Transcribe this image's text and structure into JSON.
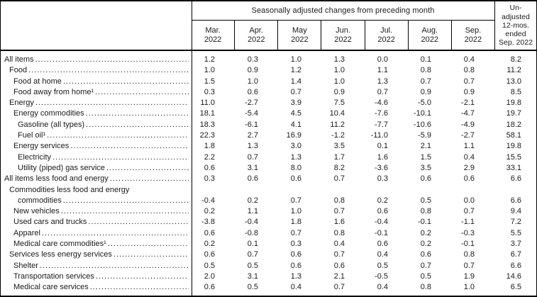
{
  "table": {
    "group_header": "Seasonally adjusted changes from preceding month",
    "months": [
      {
        "abbr": "Mar.",
        "year": "2022"
      },
      {
        "abbr": "Apr.",
        "year": "2022"
      },
      {
        "abbr": "May",
        "year": "2022"
      },
      {
        "abbr": "Jun.",
        "year": "2022"
      },
      {
        "abbr": "Jul.",
        "year": "2022"
      },
      {
        "abbr": "Aug.",
        "year": "2022"
      },
      {
        "abbr": "Sep.",
        "year": "2022"
      }
    ],
    "unadjusted_header_lines": [
      "Un-",
      "adjusted",
      "12-mos.",
      "ended",
      "Sep. 2022"
    ],
    "column_labels": [
      "Mar. 2022",
      "Apr. 2022",
      "May 2022",
      "Jun. 2022",
      "Jul. 2022",
      "Aug. 2022",
      "Sep. 2022",
      "Un-adjusted 12-mos. ended Sep. 2022"
    ],
    "rows": [
      {
        "label": "All items",
        "indent": 0,
        "values": [
          "1.2",
          "0.3",
          "1.0",
          "1.3",
          "0.0",
          "0.1",
          "0.4",
          "8.2"
        ]
      },
      {
        "label": "Food",
        "indent": 1,
        "values": [
          "1.0",
          "0.9",
          "1.2",
          "1.0",
          "1.1",
          "0.8",
          "0.8",
          "11.2"
        ]
      },
      {
        "label": "Food at home",
        "indent": 2,
        "values": [
          "1.5",
          "1.0",
          "1.4",
          "1.0",
          "1.3",
          "0.7",
          "0.7",
          "13.0"
        ]
      },
      {
        "label": "Food away from home¹",
        "indent": 2,
        "values": [
          "0.3",
          "0.6",
          "0.7",
          "0.9",
          "0.7",
          "0.9",
          "0.9",
          "8.5"
        ]
      },
      {
        "label": "Energy",
        "indent": 1,
        "values": [
          "11.0",
          "-2.7",
          "3.9",
          "7.5",
          "-4.6",
          "-5.0",
          "-2.1",
          "19.8"
        ]
      },
      {
        "label": "Energy commodities",
        "indent": 2,
        "values": [
          "18.1",
          "-5.4",
          "4.5",
          "10.4",
          "-7.6",
          "-10.1",
          "-4.7",
          "19.7"
        ]
      },
      {
        "label": "Gasoline (all types)",
        "indent": 3,
        "values": [
          "18.3",
          "-6.1",
          "4.1",
          "11.2",
          "-7.7",
          "-10.6",
          "-4.9",
          "18.2"
        ]
      },
      {
        "label": "Fuel oil¹",
        "indent": 3,
        "values": [
          "22.3",
          "2.7",
          "16.9",
          "-1.2",
          "-11.0",
          "-5.9",
          "-2.7",
          "58.1"
        ]
      },
      {
        "label": "Energy services",
        "indent": 2,
        "values": [
          "1.8",
          "1.3",
          "3.0",
          "3.5",
          "0.1",
          "2.1",
          "1.1",
          "19.8"
        ]
      },
      {
        "label": "Electricity",
        "indent": 3,
        "values": [
          "2.2",
          "0.7",
          "1.3",
          "1.7",
          "1.6",
          "1.5",
          "0.4",
          "15.5"
        ]
      },
      {
        "label": "Utility (piped) gas service",
        "indent": 3,
        "values": [
          "0.6",
          "3.1",
          "8.0",
          "8.2",
          "-3.6",
          "3.5",
          "2.9",
          "33.1"
        ]
      },
      {
        "label": "All items less food and energy",
        "indent": 0,
        "values": [
          "0.3",
          "0.6",
          "0.6",
          "0.7",
          "0.3",
          "0.6",
          "0.6",
          "6.6"
        ]
      },
      {
        "label": "Commodities less food and energy",
        "label_line2": "commodities",
        "indent": 1,
        "indent_line2": 3,
        "values": [
          "-0.4",
          "0.2",
          "0.7",
          "0.8",
          "0.2",
          "0.5",
          "0.0",
          "6.6"
        ]
      },
      {
        "label": "New vehicles",
        "indent": 2,
        "values": [
          "0.2",
          "1.1",
          "1.0",
          "0.7",
          "0.6",
          "0.8",
          "0.7",
          "9.4"
        ]
      },
      {
        "label": "Used cars and trucks",
        "indent": 2,
        "values": [
          "-3.8",
          "-0.4",
          "1.8",
          "1.6",
          "-0.4",
          "-0.1",
          "-1.1",
          "7.2"
        ]
      },
      {
        "label": "Apparel",
        "indent": 2,
        "values": [
          "0.6",
          "-0.8",
          "0.7",
          "0.8",
          "-0.1",
          "0.2",
          "-0.3",
          "5.5"
        ]
      },
      {
        "label": "Medical care commodities¹",
        "indent": 2,
        "values": [
          "0.2",
          "0.1",
          "0.3",
          "0.4",
          "0.6",
          "0.2",
          "-0.1",
          "3.7"
        ]
      },
      {
        "label": "Services less energy services",
        "indent": 1,
        "values": [
          "0.6",
          "0.7",
          "0.6",
          "0.7",
          "0.4",
          "0.6",
          "0.8",
          "6.7"
        ]
      },
      {
        "label": "Shelter",
        "indent": 2,
        "values": [
          "0.5",
          "0.5",
          "0.6",
          "0.6",
          "0.5",
          "0.7",
          "0.7",
          "6.6"
        ]
      },
      {
        "label": "Transportation services",
        "indent": 2,
        "values": [
          "2.0",
          "3.1",
          "1.3",
          "2.1",
          "-0.5",
          "0.5",
          "1.9",
          "14.6"
        ]
      },
      {
        "label": "Medical care services",
        "indent": 2,
        "values": [
          "0.6",
          "0.5",
          "0.4",
          "0.7",
          "0.4",
          "0.8",
          "1.0",
          "6.5"
        ]
      }
    ],
    "colors": {
      "text": "#1a1a1a",
      "border": "#000000",
      "background": "#ffffff"
    }
  }
}
